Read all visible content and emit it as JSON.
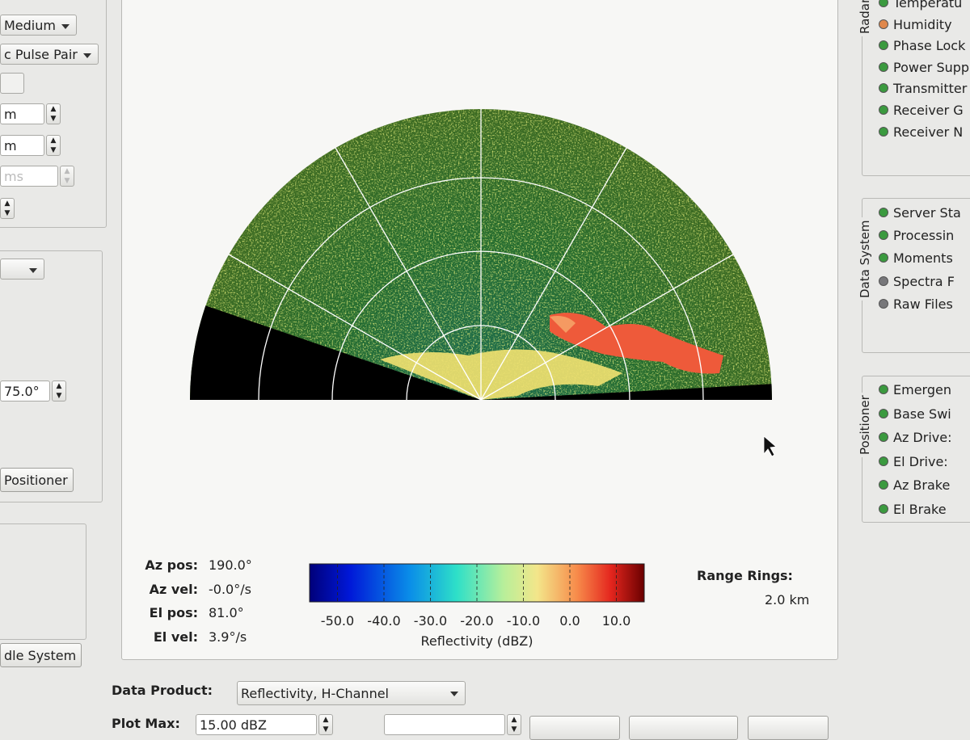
{
  "left_panel": {
    "controls": [
      "Medium",
      "c Pulse Pair",
      "m",
      "m",
      "ms",
      "75.0°"
    ],
    "buttons": [
      "Positioner",
      "dle System"
    ]
  },
  "status_groups": [
    {
      "title": "Radar",
      "items": [
        {
          "label": "Temperatu",
          "color": "#3b9a3f"
        },
        {
          "label": "Humidity",
          "color": "#e0884c"
        },
        {
          "label": "Phase Lock",
          "color": "#3b9a3f"
        },
        {
          "label": "Power Supp",
          "color": "#3b9a3f"
        },
        {
          "label": "Transmitter",
          "color": "#3b9a3f"
        },
        {
          "label": "Receiver G",
          "color": "#3b9a3f"
        },
        {
          "label": "Receiver N",
          "color": "#3b9a3f"
        }
      ]
    },
    {
      "title": "Data System",
      "items": [
        {
          "label": "Server Sta",
          "color": "#3b9a3f"
        },
        {
          "label": "Processin",
          "color": "#3b9a3f"
        },
        {
          "label": "Moments",
          "color": "#3b9a3f"
        },
        {
          "label": "Spectra F",
          "color": "#77777a"
        },
        {
          "label": "Raw Files",
          "color": "#77777a"
        }
      ]
    },
    {
      "title": "Positioner",
      "items": [
        {
          "label": "Emergen",
          "color": "#3b9a3f"
        },
        {
          "label": "Base Swi",
          "color": "#3b9a3f"
        },
        {
          "label": "Az Drive:",
          "color": "#3b9a3f"
        },
        {
          "label": "El Drive:",
          "color": "#3b9a3f"
        },
        {
          "label": "Az Brake",
          "color": "#3b9a3f"
        },
        {
          "label": "El Brake",
          "color": "#3b9a3f"
        }
      ]
    }
  ],
  "readouts": [
    {
      "label": "Az pos:",
      "value": "190.0°"
    },
    {
      "label": "Az vel:",
      "value": "-0.0°/s"
    },
    {
      "label": "El pos:",
      "value": "81.0°"
    },
    {
      "label": "El vel:",
      "value": "3.9°/s"
    }
  ],
  "colorbar": {
    "label": "Reflectivity (dBZ)",
    "lim": [
      -56,
      16
    ],
    "ticks": [
      {
        "value": -50,
        "label": "-50.0"
      },
      {
        "value": -40,
        "label": "-40.0"
      },
      {
        "value": -30,
        "label": "-30.0"
      },
      {
        "value": -20,
        "label": "-20.0"
      },
      {
        "value": -10,
        "label": "-10.0"
      },
      {
        "value": 0,
        "label": "0.0"
      },
      {
        "value": 10,
        "label": "10.0"
      }
    ]
  },
  "range_rings": {
    "label": "Range Rings:",
    "value": "2.0 km"
  },
  "data_product": {
    "label": "Data Product:",
    "value": "Reflectivity, H-Channel"
  },
  "plot_max": {
    "label": "Plot Max:",
    "value": "15.00 dBZ"
  }
}
